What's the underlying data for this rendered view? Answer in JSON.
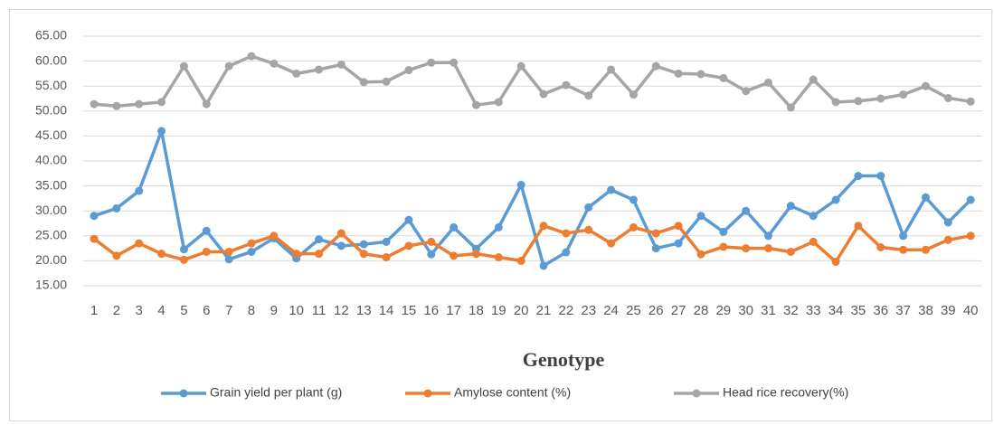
{
  "chart_data": {
    "type": "line",
    "x_label": "Genotype",
    "categories": [
      "1",
      "2",
      "3",
      "4",
      "5",
      "6",
      "7",
      "8",
      "9",
      "10",
      "11",
      "12",
      "13",
      "14",
      "15",
      "16",
      "17",
      "18",
      "19",
      "20",
      "21",
      "22",
      "23",
      "24",
      "25",
      "26",
      "27",
      "28",
      "29",
      "30",
      "31",
      "32",
      "33",
      "34",
      "35",
      "36",
      "37",
      "38",
      "39",
      "40"
    ],
    "series": [
      {
        "name": "Grain yield per plant (g)",
        "color": "#5b9bd5",
        "values": [
          29,
          30.5,
          34,
          46,
          22.3,
          26,
          20.3,
          21.8,
          24.5,
          20.5,
          24.3,
          23,
          23.3,
          23.8,
          28.2,
          21.3,
          26.7,
          22.4,
          26.7,
          35.2,
          19,
          21.7,
          30.7,
          34.2,
          32.2,
          22.5,
          23.5,
          29,
          25.8,
          30,
          25,
          31,
          29,
          32.2,
          37,
          37,
          25,
          32.7,
          27.7,
          32.2
        ]
      },
      {
        "name": "Amylose content (%)",
        "color": "#ed7d31",
        "values": [
          24.4,
          21,
          23.5,
          21.4,
          20.2,
          21.8,
          21.8,
          23.5,
          25,
          21.4,
          21.4,
          25.5,
          21.4,
          20.7,
          23,
          23.8,
          21,
          21.4,
          20.7,
          20,
          27,
          25.5,
          26.2,
          23.5,
          26.7,
          25.5,
          27,
          21.3,
          22.8,
          22.5,
          22.5,
          21.8,
          23.8,
          19.8,
          27,
          22.7,
          22.2,
          22.2,
          24.2,
          25
        ]
      },
      {
        "name": "Head rice recovery(%)",
        "color": "#a5a5a5",
        "values": [
          51.4,
          51,
          51.4,
          51.8,
          59,
          51.4,
          59,
          61,
          59.5,
          57.5,
          58.3,
          59.3,
          55.8,
          55.9,
          58.2,
          59.7,
          59.7,
          51.2,
          51.8,
          59,
          53.4,
          55.2,
          53.1,
          58.3,
          53.3,
          59,
          57.5,
          57.4,
          56.6,
          54,
          55.7,
          50.7,
          56.3,
          51.8,
          52,
          52.5,
          53.3,
          55,
          52.6,
          51.9
        ]
      }
    ],
    "ylim": [
      15,
      65
    ],
    "yticks": [
      {
        "value": 15,
        "label": "15.00"
      },
      {
        "value": 20,
        "label": "20.00"
      },
      {
        "value": 25,
        "label": "25.00"
      },
      {
        "value": 30,
        "label": "30.00"
      },
      {
        "value": 35,
        "label": "35.00"
      },
      {
        "value": 40,
        "label": "40.00"
      },
      {
        "value": 45,
        "label": "45.00"
      },
      {
        "value": 50,
        "label": "50.00"
      },
      {
        "value": 55,
        "label": "55.00"
      },
      {
        "value": 60,
        "label": "60.00"
      },
      {
        "value": 65,
        "label": "65.00"
      }
    ],
    "grid": true,
    "legend": "bottom"
  }
}
